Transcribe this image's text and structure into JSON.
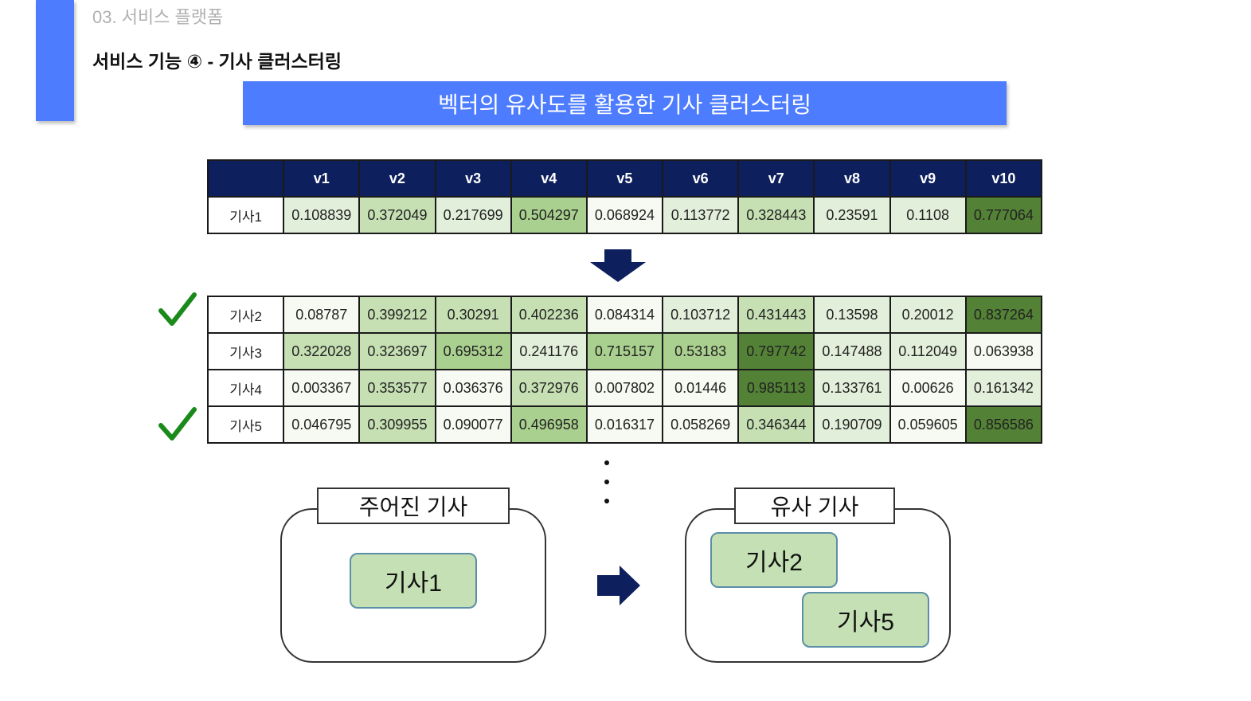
{
  "header": {
    "section": "03. 서비스 플랫폼",
    "subtitle": "서비스 기능 ④  -  기사 클러스터링"
  },
  "banner": {
    "title": "벡터의 유사도를 활용한 기사 클러스터링"
  },
  "colors": {
    "accent": "#4d7cff",
    "header_bg": "#0d1f5c",
    "cell_scale": [
      "#f6faf2",
      "#e2efda",
      "#c6e0b4",
      "#a9d08e",
      "#538135"
    ],
    "check": "#1a8a1a",
    "arrow": "#0d1f5c"
  },
  "columns": [
    "v1",
    "v2",
    "v3",
    "v4",
    "v5",
    "v6",
    "v7",
    "v8",
    "v9",
    "v10"
  ],
  "query": {
    "label": "기사1",
    "values": [
      "0.108839",
      "0.372049",
      "0.217699",
      "0.504297",
      "0.068924",
      "0.113772",
      "0.328443",
      "0.23591",
      "0.1108",
      "0.777064"
    ]
  },
  "documents": [
    {
      "label": "기사2",
      "checked": true,
      "values": [
        "0.08787",
        "0.399212",
        "0.30291",
        "0.402236",
        "0.084314",
        "0.103712",
        "0.431443",
        "0.13598",
        "0.20012",
        "0.837264"
      ]
    },
    {
      "label": "기사3",
      "checked": false,
      "values": [
        "0.322028",
        "0.323697",
        "0.695312",
        "0.241176",
        "0.715157",
        "0.53183",
        "0.797742",
        "0.147488",
        "0.112049",
        "0.063938"
      ]
    },
    {
      "label": "기사4",
      "checked": false,
      "values": [
        "0.003367",
        "0.353577",
        "0.036376",
        "0.372976",
        "0.007802",
        "0.01446",
        "0.985113",
        "0.133761",
        "0.00626",
        "0.161342"
      ]
    },
    {
      "label": "기사5",
      "checked": true,
      "values": [
        "0.046795",
        "0.309955",
        "0.090077",
        "0.496958",
        "0.016317",
        "0.058269",
        "0.346344",
        "0.190709",
        "0.059605",
        "0.856586"
      ]
    }
  ],
  "given": {
    "title": "주어진 기사",
    "items": [
      "기사1"
    ]
  },
  "similar": {
    "title": "유사 기사",
    "items": [
      "기사2",
      "기사5"
    ]
  }
}
